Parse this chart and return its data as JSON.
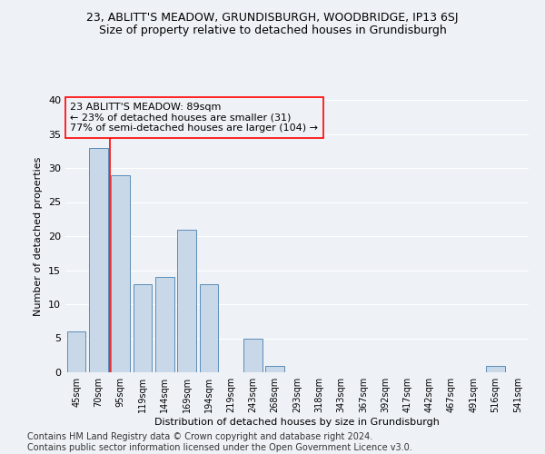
{
  "title": "23, ABLITT'S MEADOW, GRUNDISBURGH, WOODBRIDGE, IP13 6SJ",
  "subtitle": "Size of property relative to detached houses in Grundisburgh",
  "xlabel": "Distribution of detached houses by size in Grundisburgh",
  "ylabel": "Number of detached properties",
  "categories": [
    "45sqm",
    "70sqm",
    "95sqm",
    "119sqm",
    "144sqm",
    "169sqm",
    "194sqm",
    "219sqm",
    "243sqm",
    "268sqm",
    "293sqm",
    "318sqm",
    "343sqm",
    "367sqm",
    "392sqm",
    "417sqm",
    "442sqm",
    "467sqm",
    "491sqm",
    "516sqm",
    "541sqm"
  ],
  "values": [
    6,
    33,
    29,
    13,
    14,
    21,
    13,
    0,
    5,
    1,
    0,
    0,
    0,
    0,
    0,
    0,
    0,
    0,
    0,
    1,
    0
  ],
  "bar_color": "#c8d8e8",
  "bar_edge_color": "#5b8db8",
  "red_line_x": 1.5,
  "annotation_line1": "23 ABLITT'S MEADOW: 89sqm",
  "annotation_line2": "← 23% of detached houses are smaller (31)",
  "annotation_line3": "77% of semi-detached houses are larger (104) →",
  "ylim": [
    0,
    40
  ],
  "yticks": [
    0,
    5,
    10,
    15,
    20,
    25,
    30,
    35,
    40
  ],
  "footer_line1": "Contains HM Land Registry data © Crown copyright and database right 2024.",
  "footer_line2": "Contains public sector information licensed under the Open Government Licence v3.0.",
  "bg_color": "#eef2f7",
  "grid_color": "#ffffff",
  "title_fontsize": 9,
  "subtitle_fontsize": 9,
  "axis_label_fontsize": 8,
  "tick_fontsize": 8,
  "annotation_fontsize": 8,
  "footer_fontsize": 7
}
